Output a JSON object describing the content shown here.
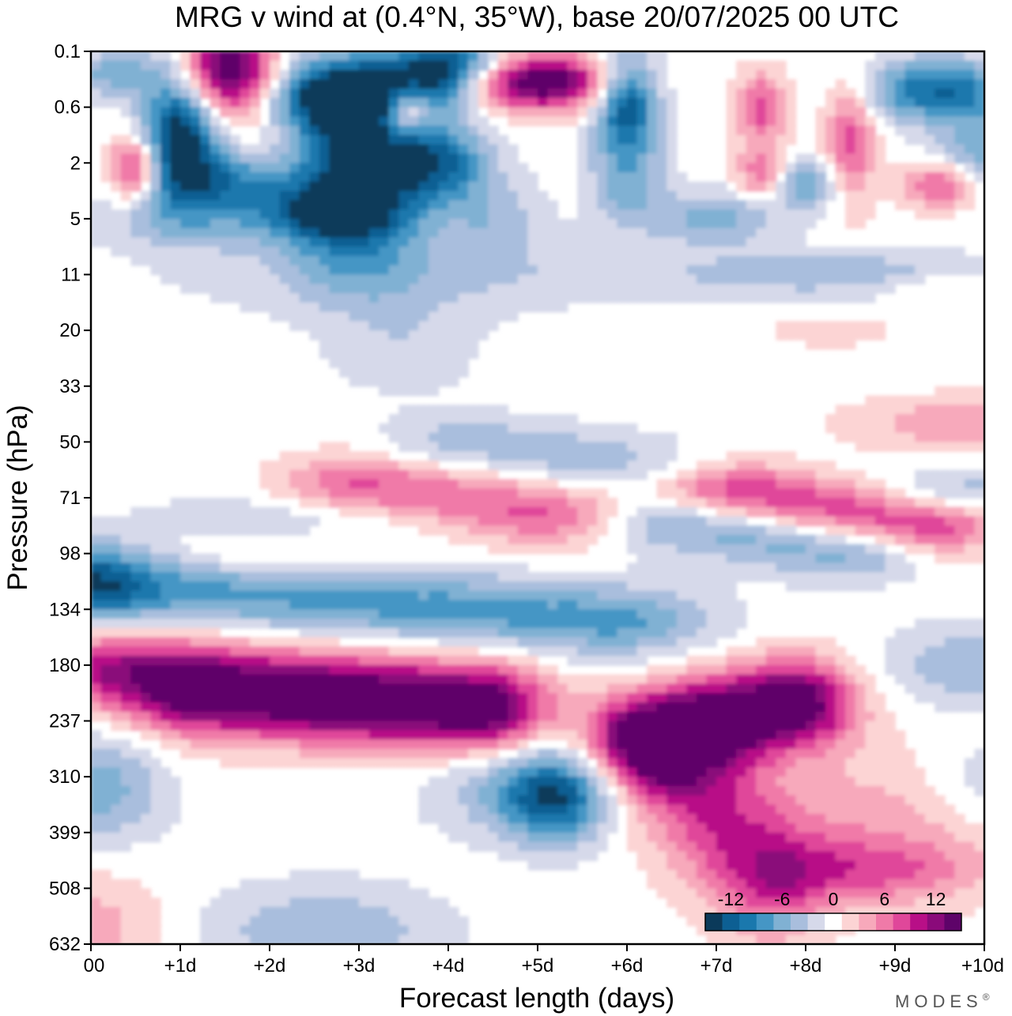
{
  "chart_data": {
    "type": "heatmap",
    "title": "MRG v wind at (0.4°N, 35°W),  base 20/07/2025  00 UTC",
    "xlabel": "Forecast length (days)",
    "ylabel": "Pressure (hPa)",
    "x_ticks": [
      "00",
      "+1d",
      "+2d",
      "+3d",
      "+4d",
      "+5d",
      "+6d",
      "+7d",
      "+8d",
      "+9d",
      "+10d"
    ],
    "y_ticks": [
      "0.1",
      "0.6",
      "2",
      "5",
      "11",
      "20",
      "33",
      "50",
      "71",
      "98",
      "134",
      "180",
      "237",
      "310",
      "399",
      "508",
      "632"
    ],
    "xlim_days": [
      0,
      10
    ],
    "colorbar": {
      "tick_labels": [
        "-12",
        "-6",
        "0",
        "6",
        "12"
      ],
      "tick_values": [
        -12,
        -6,
        0,
        6,
        12
      ],
      "levels": [
        -15,
        -13,
        -11,
        -9,
        -7,
        -5,
        -3,
        -1,
        1,
        3,
        5,
        7,
        9,
        11,
        13,
        15
      ],
      "colors": [
        "#0b3a5a",
        "#0d5f93",
        "#1a78ad",
        "#4596c5",
        "#80b1d3",
        "#a9bedd",
        "#d6d9ea",
        "#ffffff",
        "#fcd4d4",
        "#f7a9bb",
        "#f07aa8",
        "#e0479a",
        "#b80f87",
        "#8a0a7a",
        "#5e0369"
      ]
    },
    "features": [
      {
        "day": 3.0,
        "level_index": 11.6,
        "sign": "positive",
        "peak": 15,
        "desc": "strong positive band along 180-237 hPa days 1.5-5"
      },
      {
        "day": 7.5,
        "level_index": 11.8,
        "sign": "positive",
        "peak": 15,
        "desc": "positive maximum near 200 hPa around day 7.5"
      },
      {
        "day": 3.5,
        "level_index": 10.0,
        "sign": "negative",
        "peak": -9,
        "desc": "negative band near 134 hPa days 0-6"
      },
      {
        "day": 5.2,
        "level_index": 13.4,
        "sign": "negative",
        "peak": -10,
        "desc": "negative cell near 310-399 hPa around day 5.2"
      },
      {
        "day": 4.5,
        "level_index": 8.0,
        "sign": "positive",
        "peak": 7,
        "desc": "positive band near 71 hPa days 3-5"
      },
      {
        "day": 8.4,
        "level_index": 8.3,
        "sign": "positive",
        "peak": 9,
        "desc": "positive band near 71-98 hPa days 7-9.5"
      },
      {
        "day": 3.1,
        "level_index": 1.8,
        "sign": "negative",
        "peak": -15,
        "desc": "strong negative structure in upper levels days 2-4.5"
      },
      {
        "day": 1.5,
        "level_index": 0.4,
        "sign": "positive",
        "peak": 15,
        "desc": "upper-level positive cell near day 1.5"
      },
      {
        "day": 5.0,
        "level_index": 0.6,
        "sign": "positive",
        "peak": 15,
        "desc": "upper-level positive cell near day 5"
      }
    ]
  },
  "brand": {
    "text": "MODES",
    "mark": "®"
  }
}
